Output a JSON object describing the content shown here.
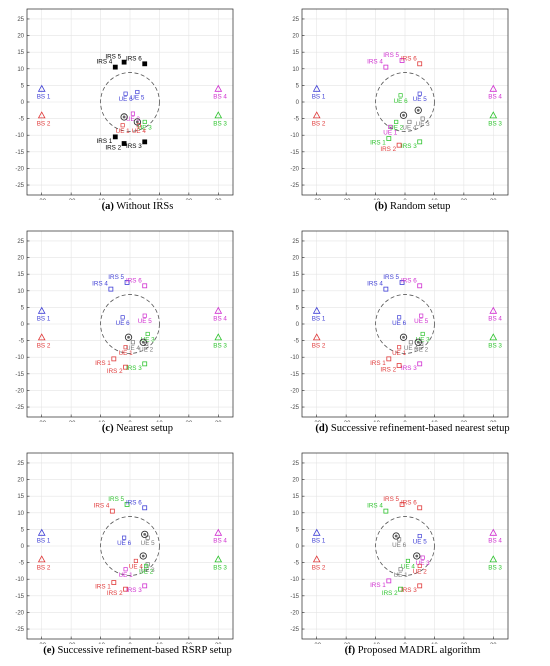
{
  "chart_data": [
    {
      "type": "scatter",
      "panel_label": "(a)",
      "caption": "Without IRSs",
      "xlim": [
        -35,
        35
      ],
      "ylim": [
        -28,
        28
      ],
      "xticks": [
        -30,
        -20,
        -10,
        0,
        10,
        20,
        30
      ],
      "yticks": [
        -25,
        -20,
        -15,
        -10,
        -5,
        0,
        5,
        10,
        15,
        20,
        25
      ],
      "circle": {
        "cx": 0,
        "cy": 0,
        "r": 10
      },
      "base_stations": [
        {
          "label": "BS 1",
          "x": -30,
          "y": 4,
          "color": "#3f3fd6"
        },
        {
          "label": "BS 2",
          "x": -30,
          "y": -4,
          "color": "#e03b3b"
        },
        {
          "label": "BS 3",
          "x": 30,
          "y": -4,
          "color": "#2fc42f"
        },
        {
          "label": "BS 4",
          "x": 30,
          "y": 4,
          "color": "#d02fd0"
        }
      ],
      "users": [
        {
          "label": "UE 6",
          "x": -1.5,
          "y": 2.5,
          "color": "#3f3fd6"
        },
        {
          "label": "UE 5",
          "x": 2.5,
          "y": 3,
          "color": "#3f3fd6"
        },
        {
          "label": "UE 2",
          "x": 1,
          "y": -3.5,
          "color": "#d02fd0"
        },
        {
          "label": "UE 3",
          "x": 5,
          "y": -6,
          "color": "#2fc42f"
        },
        {
          "label": "UE 4",
          "x": 3,
          "y": -7,
          "color": "#e03b3b"
        },
        {
          "label": "UE 1",
          "x": -2.5,
          "y": -7,
          "color": "#e03b3b"
        }
      ],
      "irs": [
        {
          "label": "IRS 4",
          "x": -5,
          "y": 10.5,
          "color": "#000000",
          "filled": true
        },
        {
          "label": "IRS 5",
          "x": -2,
          "y": 12,
          "color": "#000000",
          "filled": true
        },
        {
          "label": "IRS 6",
          "x": 5,
          "y": 11.5,
          "color": "#000000",
          "filled": true
        },
        {
          "label": "IRS 1",
          "x": -5,
          "y": -10.5,
          "color": "#000000",
          "filled": true
        },
        {
          "label": "IRS 2",
          "x": -2,
          "y": -12.5,
          "color": "#000000",
          "filled": true
        },
        {
          "label": "IRS 3",
          "x": 5,
          "y": -12,
          "color": "#000000",
          "filled": true
        }
      ],
      "uavs": [
        {
          "x": -2,
          "y": -4.5
        },
        {
          "x": 2.5,
          "y": -6
        }
      ]
    },
    {
      "type": "scatter",
      "panel_label": "(b)",
      "caption": "Random setup",
      "xlim": [
        -35,
        35
      ],
      "ylim": [
        -28,
        28
      ],
      "xticks": [
        -30,
        -20,
        -10,
        0,
        10,
        20,
        30
      ],
      "yticks": [
        -25,
        -20,
        -15,
        -10,
        -5,
        0,
        5,
        10,
        15,
        20,
        25
      ],
      "circle": {
        "cx": 0,
        "cy": 0,
        "r": 10
      },
      "base_stations": [
        {
          "label": "BS 1",
          "x": -30,
          "y": 4,
          "color": "#3f3fd6"
        },
        {
          "label": "BS 2",
          "x": -30,
          "y": -4,
          "color": "#e03b3b"
        },
        {
          "label": "BS 3",
          "x": 30,
          "y": -4,
          "color": "#2fc42f"
        },
        {
          "label": "BS 4",
          "x": 30,
          "y": 4,
          "color": "#d02fd0"
        }
      ],
      "users": [
        {
          "label": "UE 6",
          "x": -1.5,
          "y": 2,
          "color": "#2fc42f"
        },
        {
          "label": "UE 5",
          "x": 5,
          "y": 2.5,
          "color": "#3f3fd6"
        },
        {
          "label": "UE 3",
          "x": 6,
          "y": -5,
          "color": "#7a7a7a"
        },
        {
          "label": "UE 4",
          "x": 1.5,
          "y": -6,
          "color": "#7a7a7a"
        },
        {
          "label": "UE 2",
          "x": -3,
          "y": -6,
          "color": "#2fc42f"
        },
        {
          "label": "UE 1",
          "x": -5,
          "y": -7.5,
          "color": "#d02fd0"
        }
      ],
      "irs": [
        {
          "label": "IRS 4",
          "x": -6.5,
          "y": 10.5,
          "color": "#d02fd0",
          "filled": false
        },
        {
          "label": "IRS 5",
          "x": -1,
          "y": 12.5,
          "color": "#d02fd0",
          "filled": false
        },
        {
          "label": "IRS 6",
          "x": 5,
          "y": 11.5,
          "color": "#e03b3b",
          "filled": false
        },
        {
          "label": "IRS 1",
          "x": -5.5,
          "y": -11,
          "color": "#2fc42f",
          "filled": false
        },
        {
          "label": "IRS 2",
          "x": -2,
          "y": -13,
          "color": "#e03b3b",
          "filled": false
        },
        {
          "label": "IRS 3",
          "x": 5,
          "y": -12,
          "color": "#2fc42f",
          "filled": false
        }
      ],
      "uavs": [
        {
          "x": -0.5,
          "y": -4
        },
        {
          "x": 4.5,
          "y": -2.5
        }
      ]
    },
    {
      "type": "scatter",
      "panel_label": "(c)",
      "caption": "Nearest setup",
      "xlim": [
        -35,
        35
      ],
      "ylim": [
        -28,
        28
      ],
      "xticks": [
        -30,
        -20,
        -10,
        0,
        10,
        20,
        30
      ],
      "yticks": [
        -25,
        -20,
        -15,
        -10,
        -5,
        0,
        5,
        10,
        15,
        20,
        25
      ],
      "circle": {
        "cx": 0,
        "cy": 0,
        "r": 10
      },
      "base_stations": [
        {
          "label": "BS 1",
          "x": -30,
          "y": 4,
          "color": "#3f3fd6"
        },
        {
          "label": "BS 2",
          "x": -30,
          "y": -4,
          "color": "#e03b3b"
        },
        {
          "label": "BS 3",
          "x": 30,
          "y": -4,
          "color": "#2fc42f"
        },
        {
          "label": "BS 4",
          "x": 30,
          "y": 4,
          "color": "#d02fd0"
        }
      ],
      "users": [
        {
          "label": "UE 6",
          "x": -2.5,
          "y": 2,
          "color": "#3f3fd6"
        },
        {
          "label": "UE 5",
          "x": 5,
          "y": 2.5,
          "color": "#d02fd0"
        },
        {
          "label": "UE 3",
          "x": 6,
          "y": -3,
          "color": "#2fc42f"
        },
        {
          "label": "UE 4",
          "x": 1,
          "y": -5.5,
          "color": "#7a7a7a"
        },
        {
          "label": "UE 2",
          "x": 5.5,
          "y": -6,
          "color": "#7a7a7a"
        },
        {
          "label": "UE 1",
          "x": -1.5,
          "y": -7,
          "color": "#e03b3b"
        }
      ],
      "irs": [
        {
          "label": "IRS 4",
          "x": -6.5,
          "y": 10.5,
          "color": "#3f3fd6",
          "filled": false
        },
        {
          "label": "IRS 5",
          "x": -1,
          "y": 12.5,
          "color": "#3f3fd6",
          "filled": false
        },
        {
          "label": "IRS 6",
          "x": 5,
          "y": 11.5,
          "color": "#d02fd0",
          "filled": false
        },
        {
          "label": "IRS 1",
          "x": -5.5,
          "y": -10.5,
          "color": "#e03b3b",
          "filled": false
        },
        {
          "label": "IRS 2",
          "x": -1.5,
          "y": -13,
          "color": "#e03b3b",
          "filled": false
        },
        {
          "label": "IRS 3",
          "x": 5,
          "y": -12,
          "color": "#2fc42f",
          "filled": false
        }
      ],
      "uavs": [
        {
          "x": -0.5,
          "y": -4
        },
        {
          "x": 4.5,
          "y": -5.5
        }
      ]
    },
    {
      "type": "scatter",
      "panel_label": "(d)",
      "caption": "Successive refinement-based nearest setup",
      "xlim": [
        -35,
        35
      ],
      "ylim": [
        -28,
        28
      ],
      "xticks": [
        -30,
        -20,
        -10,
        0,
        10,
        20,
        30
      ],
      "yticks": [
        -25,
        -20,
        -15,
        -10,
        -5,
        0,
        5,
        10,
        15,
        20,
        25
      ],
      "circle": {
        "cx": 0,
        "cy": 0,
        "r": 10
      },
      "base_stations": [
        {
          "label": "BS 1",
          "x": -30,
          "y": 4,
          "color": "#3f3fd6"
        },
        {
          "label": "BS 2",
          "x": -30,
          "y": -4,
          "color": "#e03b3b"
        },
        {
          "label": "BS 3",
          "x": 30,
          "y": -4,
          "color": "#2fc42f"
        },
        {
          "label": "BS 4",
          "x": 30,
          "y": 4,
          "color": "#d02fd0"
        }
      ],
      "users": [
        {
          "label": "UE 6",
          "x": -2,
          "y": 2,
          "color": "#3f3fd6"
        },
        {
          "label": "UE 5",
          "x": 5.5,
          "y": 2.5,
          "color": "#d02fd0"
        },
        {
          "label": "UE 3",
          "x": 6,
          "y": -3,
          "color": "#2fc42f"
        },
        {
          "label": "UE 4",
          "x": 2,
          "y": -5.5,
          "color": "#7a7a7a"
        },
        {
          "label": "UE 2",
          "x": 5.5,
          "y": -6,
          "color": "#7a7a7a"
        },
        {
          "label": "UE 1",
          "x": -2,
          "y": -7,
          "color": "#e03b3b"
        }
      ],
      "irs": [
        {
          "label": "IRS 4",
          "x": -6.5,
          "y": 10.5,
          "color": "#3f3fd6",
          "filled": false
        },
        {
          "label": "IRS 5",
          "x": -1,
          "y": 12.5,
          "color": "#3f3fd6",
          "filled": false
        },
        {
          "label": "IRS 6",
          "x": 5,
          "y": 11.5,
          "color": "#d02fd0",
          "filled": false
        },
        {
          "label": "IRS 1",
          "x": -5.5,
          "y": -10.5,
          "color": "#e03b3b",
          "filled": false
        },
        {
          "label": "IRS 2",
          "x": -2,
          "y": -12.5,
          "color": "#e03b3b",
          "filled": false
        },
        {
          "label": "IRS 3",
          "x": 5,
          "y": -12,
          "color": "#d02fd0",
          "filled": false
        }
      ],
      "uavs": [
        {
          "x": -0.5,
          "y": -4
        },
        {
          "x": 4.5,
          "y": -5.5
        }
      ]
    },
    {
      "type": "scatter",
      "panel_label": "(e)",
      "caption": "Successive refinement-based RSRP setup",
      "xlim": [
        -35,
        35
      ],
      "ylim": [
        -28,
        28
      ],
      "xticks": [
        -30,
        -20,
        -10,
        0,
        10,
        20,
        30
      ],
      "yticks": [
        -25,
        -20,
        -15,
        -10,
        -5,
        0,
        5,
        10,
        15,
        20,
        25
      ],
      "circle": {
        "cx": 0,
        "cy": 0,
        "r": 10
      },
      "base_stations": [
        {
          "label": "BS 1",
          "x": -30,
          "y": 4,
          "color": "#3f3fd6"
        },
        {
          "label": "BS 2",
          "x": -30,
          "y": -4,
          "color": "#e03b3b"
        },
        {
          "label": "BS 3",
          "x": 30,
          "y": -4,
          "color": "#2fc42f"
        },
        {
          "label": "BS 4",
          "x": 30,
          "y": 4,
          "color": "#d02fd0"
        }
      ],
      "users": [
        {
          "label": "UE 6",
          "x": -2,
          "y": 2.5,
          "color": "#3f3fd6"
        },
        {
          "label": "UE 5",
          "x": 6,
          "y": 2.5,
          "color": "#7a7a7a"
        },
        {
          "label": "UE 4",
          "x": 2,
          "y": -4.5,
          "color": "#e03b3b"
        },
        {
          "label": "UE 3",
          "x": 6,
          "y": -5.5,
          "color": "#7a7a7a"
        },
        {
          "label": "UE 2",
          "x": 5.5,
          "y": -6,
          "color": "#2fc42f"
        },
        {
          "label": "UE 1",
          "x": -1.5,
          "y": -7,
          "color": "#d02fd0"
        }
      ],
      "irs": [
        {
          "label": "IRS 4",
          "x": -6,
          "y": 10.5,
          "color": "#e03b3b",
          "filled": false
        },
        {
          "label": "IRS 5",
          "x": -1,
          "y": 12.5,
          "color": "#2fc42f",
          "filled": false
        },
        {
          "label": "IRS 6",
          "x": 5,
          "y": 11.5,
          "color": "#3f3fd6",
          "filled": false
        },
        {
          "label": "IRS 1",
          "x": -5.5,
          "y": -11,
          "color": "#e03b3b",
          "filled": false
        },
        {
          "label": "IRS 2",
          "x": -1.5,
          "y": -13,
          "color": "#e03b3b",
          "filled": false
        },
        {
          "label": "IRS 3",
          "x": 5,
          "y": -12,
          "color": "#d02fd0",
          "filled": false
        }
      ],
      "uavs": [
        {
          "x": 5,
          "y": 3.5
        },
        {
          "x": 4.5,
          "y": -3
        }
      ]
    },
    {
      "type": "scatter",
      "panel_label": "(f)",
      "caption": "Proposed MADRL algorithm",
      "xlim": [
        -35,
        35
      ],
      "ylim": [
        -28,
        28
      ],
      "xticks": [
        -30,
        -20,
        -10,
        0,
        10,
        20,
        30
      ],
      "yticks": [
        -25,
        -20,
        -15,
        -10,
        -5,
        0,
        5,
        10,
        15,
        20,
        25
      ],
      "circle": {
        "cx": 0,
        "cy": 0,
        "r": 10
      },
      "base_stations": [
        {
          "label": "BS 1",
          "x": -30,
          "y": 4,
          "color": "#3f3fd6"
        },
        {
          "label": "BS 2",
          "x": -30,
          "y": -4,
          "color": "#e03b3b"
        },
        {
          "label": "BS 3",
          "x": 30,
          "y": -4,
          "color": "#2fc42f"
        },
        {
          "label": "BS 4",
          "x": 30,
          "y": 4,
          "color": "#d02fd0"
        }
      ],
      "users": [
        {
          "label": "UE 6",
          "x": -2,
          "y": 2,
          "color": "#7a7a7a"
        },
        {
          "label": "UE 5",
          "x": 5,
          "y": 3,
          "color": "#3f3fd6"
        },
        {
          "label": "UE 3",
          "x": 6,
          "y": -3.5,
          "color": "#d02fd0"
        },
        {
          "label": "UE 4",
          "x": 1,
          "y": -4.5,
          "color": "#2fc42f"
        },
        {
          "label": "UE 2",
          "x": 5,
          "y": -6,
          "color": "#e03b3b"
        },
        {
          "label": "UE 1",
          "x": -1.5,
          "y": -7,
          "color": "#7a7a7a"
        }
      ],
      "irs": [
        {
          "label": "IRS 4",
          "x": -6.5,
          "y": 10.5,
          "color": "#2fc42f",
          "filled": false
        },
        {
          "label": "IRS 5",
          "x": -1,
          "y": 12.5,
          "color": "#e03b3b",
          "filled": false
        },
        {
          "label": "IRS 6",
          "x": 5,
          "y": 11.5,
          "color": "#e03b3b",
          "filled": false
        },
        {
          "label": "IRS 1",
          "x": -5.5,
          "y": -10.5,
          "color": "#d02fd0",
          "filled": false
        },
        {
          "label": "IRS 2",
          "x": -1.5,
          "y": -13,
          "color": "#2fc42f",
          "filled": false
        },
        {
          "label": "IRS 3",
          "x": 5,
          "y": -12,
          "color": "#e03b3b",
          "filled": false
        }
      ],
      "uavs": [
        {
          "x": -3,
          "y": 3
        },
        {
          "x": 4,
          "y": -3
        }
      ]
    }
  ]
}
